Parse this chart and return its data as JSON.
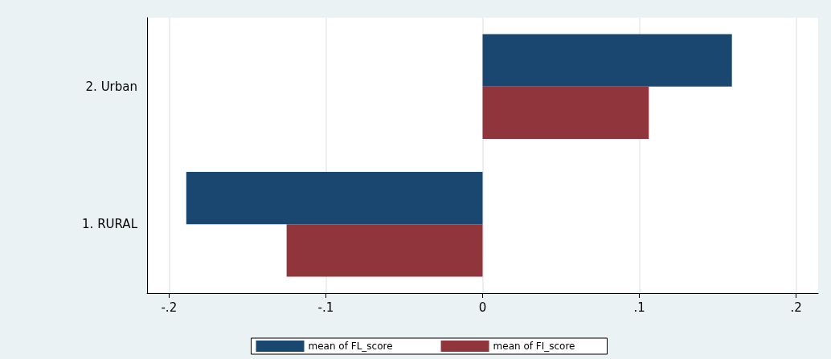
{
  "chart_data": {
    "type": "bar",
    "orientation": "horizontal",
    "categories": [
      "2. Urban",
      "1. RURAL"
    ],
    "series": [
      {
        "name": "mean of FL_score",
        "color": "#1a476f",
        "values": [
          0.159,
          -0.189
        ]
      },
      {
        "name": "mean of FI_score",
        "color": "#90353b",
        "values": [
          0.106,
          -0.125
        ]
      }
    ],
    "xlim": [
      -0.214,
      0.214
    ],
    "xticks": [
      {
        "value": -0.2,
        "label": "-.2"
      },
      {
        "value": -0.1,
        "label": "-.1"
      },
      0,
      {
        "value": 0.1,
        "label": ".1"
      },
      {
        "value": 0.2,
        "label": ".2"
      }
    ],
    "grid": "x",
    "legend": "bottom"
  }
}
